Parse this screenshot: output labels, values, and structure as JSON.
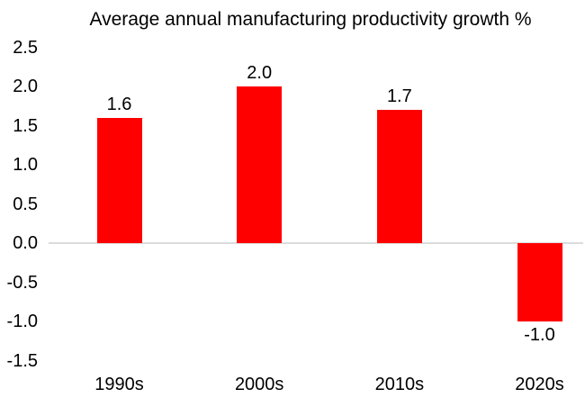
{
  "chart_data": {
    "type": "bar",
    "title": "Average annual manufacturing productivity growth %",
    "categories": [
      "1990s",
      "2000s",
      "2010s",
      "2020s"
    ],
    "values": [
      1.6,
      2.0,
      1.7,
      -1.0
    ],
    "value_labels": [
      "1.6",
      "2.0",
      "1.7",
      "-1.0"
    ],
    "xlabel": "",
    "ylabel": "",
    "ylim": [
      -1.5,
      2.5
    ],
    "ytick_step": 0.5,
    "ytick_labels": [
      "2.5",
      "2.0",
      "1.5",
      "1.0",
      "0.5",
      "0.0",
      "-0.5",
      "-1.0",
      "-1.5"
    ],
    "ytick_values": [
      2.5,
      2.0,
      1.5,
      1.0,
      0.5,
      0.0,
      -0.5,
      -1.0,
      -1.5
    ],
    "bar_color": "#FF0000",
    "zero_line_color": "#DCDCDC",
    "text_color": "#000000",
    "background_color": "#FFFFFF",
    "grid": "zero-line-only",
    "legend": "none",
    "data_labels": "outside-end"
  }
}
